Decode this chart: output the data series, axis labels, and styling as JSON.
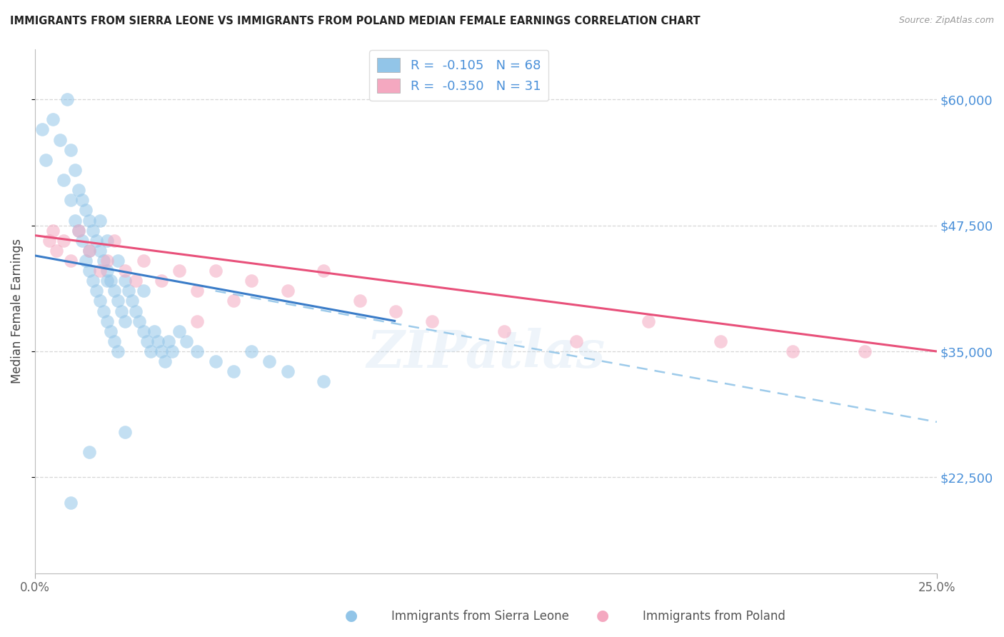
{
  "title": "IMMIGRANTS FROM SIERRA LEONE VS IMMIGRANTS FROM POLAND MEDIAN FEMALE EARNINGS CORRELATION CHART",
  "source": "Source: ZipAtlas.com",
  "ylabel": "Median Female Earnings",
  "yticks": [
    22500,
    35000,
    47500,
    60000
  ],
  "ytick_labels": [
    "$22,500",
    "$35,000",
    "$47,500",
    "$60,000"
  ],
  "xlim": [
    0.0,
    25.0
  ],
  "ylim": [
    13000,
    65000
  ],
  "legend1_label": "Immigrants from Sierra Leone",
  "legend2_label": "Immigrants from Poland",
  "r1": "-0.105",
  "n1": "68",
  "r2": "-0.350",
  "n2": "31",
  "blue_color": "#92C5E8",
  "pink_color": "#F4A8C0",
  "blue_line_color": "#3A7CC8",
  "pink_line_color": "#E8507A",
  "dashed_line_color": "#92C5E8",
  "watermark": "ZIPatlas",
  "sierra_leone_x": [
    0.2,
    0.3,
    0.5,
    0.7,
    0.8,
    0.9,
    1.0,
    1.0,
    1.1,
    1.1,
    1.2,
    1.2,
    1.3,
    1.3,
    1.4,
    1.4,
    1.5,
    1.5,
    1.5,
    1.6,
    1.6,
    1.7,
    1.7,
    1.8,
    1.8,
    1.9,
    1.9,
    2.0,
    2.0,
    2.1,
    2.1,
    2.2,
    2.2,
    2.3,
    2.3,
    2.4,
    2.5,
    2.5,
    2.6,
    2.7,
    2.8,
    2.9,
    3.0,
    3.1,
    3.2,
    3.3,
    3.4,
    3.5,
    3.6,
    3.7,
    3.8,
    4.0,
    4.2,
    4.5,
    5.0,
    5.5,
    6.0,
    6.5,
    7.0,
    8.0,
    2.5,
    1.5,
    1.0,
    2.0,
    3.0,
    2.0,
    1.8,
    2.3
  ],
  "sierra_leone_y": [
    57000,
    54000,
    58000,
    56000,
    52000,
    60000,
    55000,
    50000,
    53000,
    48000,
    51000,
    47000,
    50000,
    46000,
    49000,
    44000,
    48000,
    45000,
    43000,
    47000,
    42000,
    46000,
    41000,
    45000,
    40000,
    44000,
    39000,
    43000,
    38000,
    42000,
    37000,
    41000,
    36000,
    40000,
    35000,
    39000,
    42000,
    38000,
    41000,
    40000,
    39000,
    38000,
    37000,
    36000,
    35000,
    37000,
    36000,
    35000,
    34000,
    36000,
    35000,
    37000,
    36000,
    35000,
    34000,
    33000,
    35000,
    34000,
    33000,
    32000,
    27000,
    25000,
    20000,
    42000,
    41000,
    46000,
    48000,
    44000
  ],
  "poland_x": [
    0.4,
    0.5,
    0.6,
    0.8,
    1.0,
    1.2,
    1.5,
    1.8,
    2.0,
    2.2,
    2.5,
    2.8,
    3.0,
    3.5,
    4.0,
    4.5,
    5.0,
    6.0,
    7.0,
    8.0,
    9.0,
    10.0,
    11.0,
    13.0,
    15.0,
    17.0,
    19.0,
    21.0,
    23.0,
    5.5,
    4.5
  ],
  "poland_y": [
    46000,
    47000,
    45000,
    46000,
    44000,
    47000,
    45000,
    43000,
    44000,
    46000,
    43000,
    42000,
    44000,
    42000,
    43000,
    41000,
    43000,
    42000,
    41000,
    43000,
    40000,
    39000,
    38000,
    37000,
    36000,
    38000,
    36000,
    35000,
    35000,
    40000,
    38000
  ],
  "sl_line_x0": 0.0,
  "sl_line_y0": 44500,
  "sl_line_x1": 10.0,
  "sl_line_y1": 38000,
  "pl_line_x0": 0.0,
  "pl_line_y0": 46500,
  "pl_line_x1": 25.0,
  "pl_line_y1": 35000,
  "dash_x0": 5.0,
  "dash_y0": 41000,
  "dash_x1": 25.0,
  "dash_y1": 28000
}
